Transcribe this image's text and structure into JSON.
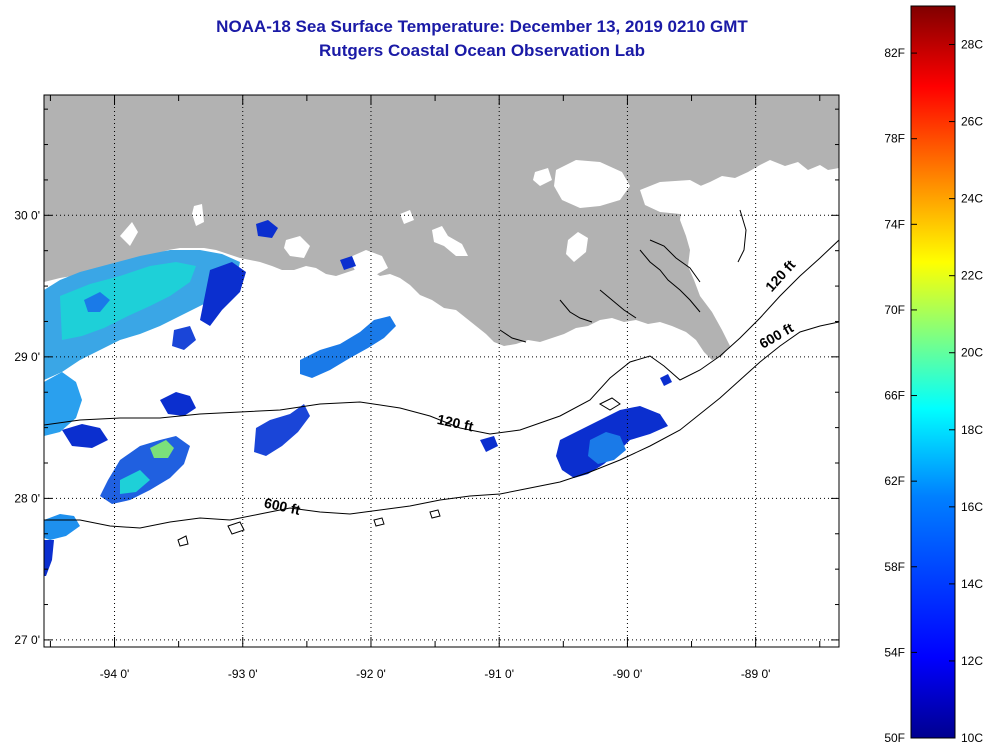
{
  "header": {
    "title": "NOAA-18 Sea Surface Temperature:  December 13, 2019 0210 GMT",
    "subtitle": "Rutgers Coastal Ocean Observation Lab"
  },
  "map": {
    "lon_range": [
      -94.55,
      -88.35
    ],
    "lat_range": [
      26.95,
      30.85
    ],
    "lat_ticks": [
      {
        "value": 30,
        "label": "30 0'"
      },
      {
        "value": 29,
        "label": "29 0'"
      },
      {
        "value": 28,
        "label": "28 0'"
      },
      {
        "value": 27,
        "label": "27 0'"
      }
    ],
    "lon_ticks": [
      {
        "value": -94,
        "label": "-94 0'"
      },
      {
        "value": -93,
        "label": "-93 0'"
      },
      {
        "value": -92,
        "label": "-92 0'"
      },
      {
        "value": -91,
        "label": "-91 0'"
      },
      {
        "value": -90,
        "label": "-90 0'"
      },
      {
        "value": -89,
        "label": "-89 0'"
      }
    ],
    "contour_labels": [
      {
        "text": "120 ft",
        "lon": -91.35,
        "lat": 28.5,
        "angle": 12
      },
      {
        "text": "120 ft",
        "lon": -88.78,
        "lat": 29.55,
        "angle": -48
      },
      {
        "text": "600 ft",
        "lon": -88.82,
        "lat": 29.12,
        "angle": -30
      },
      {
        "text": "600 ft",
        "lon": -92.7,
        "lat": 27.91,
        "angle": 12
      }
    ],
    "land_color": "#b2b2b2",
    "grid": "dotted"
  },
  "colorbar": {
    "fahrenheit": [
      {
        "value": 82,
        "label": "82F"
      },
      {
        "value": 78,
        "label": "78F"
      },
      {
        "value": 74,
        "label": "74F"
      },
      {
        "value": 70,
        "label": "70F"
      },
      {
        "value": 66,
        "label": "66F"
      },
      {
        "value": 62,
        "label": "62F"
      },
      {
        "value": 58,
        "label": "58F"
      },
      {
        "value": 54,
        "label": "54F"
      },
      {
        "value": 50,
        "label": "50F"
      }
    ],
    "celsius": [
      {
        "value": 28,
        "label": "28C"
      },
      {
        "value": 26,
        "label": "26C"
      },
      {
        "value": 24,
        "label": "24C"
      },
      {
        "value": 22,
        "label": "22C"
      },
      {
        "value": 20,
        "label": "20C"
      },
      {
        "value": 18,
        "label": "18C"
      },
      {
        "value": 16,
        "label": "16C"
      },
      {
        "value": 14,
        "label": "14C"
      },
      {
        "value": 12,
        "label": "12C"
      },
      {
        "value": 10,
        "label": "10C"
      }
    ],
    "range_c": [
      10,
      29
    ],
    "colors": [
      "#00008f",
      "#0000ff",
      "#0080ff",
      "#00ffff",
      "#80ff80",
      "#ffff00",
      "#ff8000",
      "#ff0000",
      "#800000"
    ]
  }
}
